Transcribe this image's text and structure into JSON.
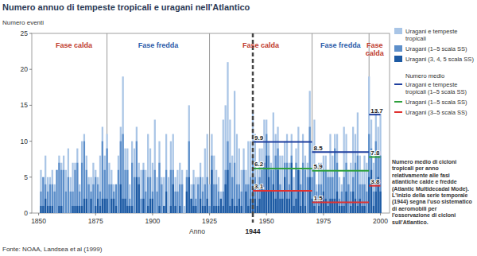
{
  "chart_data": {
    "type": "bar",
    "title": "Numero annuo di tempeste tropicali e uragani nell'Atlantico",
    "y_label": "Numero eventi",
    "x_label": "Anno",
    "source": "Fonte: NOAA, Landsea et al (1999)",
    "stacked": false,
    "grid": false,
    "legend": "right",
    "xlim": [
      1847,
      2004
    ],
    "xticks": [
      1850,
      1875,
      1900,
      1925,
      1950,
      1975,
      2000
    ],
    "ylim": [
      0,
      25
    ],
    "yticks": [
      0,
      5,
      10,
      15,
      20,
      25
    ],
    "series_start": 1944,
    "x": [
      1851,
      1852,
      1853,
      1854,
      1855,
      1856,
      1857,
      1858,
      1859,
      1860,
      1861,
      1862,
      1863,
      1864,
      1865,
      1866,
      1867,
      1868,
      1869,
      1870,
      1871,
      1872,
      1873,
      1874,
      1875,
      1876,
      1877,
      1878,
      1879,
      1880,
      1881,
      1882,
      1883,
      1884,
      1885,
      1886,
      1887,
      1888,
      1889,
      1890,
      1891,
      1892,
      1893,
      1894,
      1895,
      1896,
      1897,
      1898,
      1899,
      1900,
      1901,
      1902,
      1903,
      1904,
      1905,
      1906,
      1907,
      1908,
      1909,
      1910,
      1911,
      1912,
      1913,
      1914,
      1915,
      1916,
      1917,
      1918,
      1919,
      1920,
      1921,
      1922,
      1923,
      1924,
      1925,
      1926,
      1927,
      1928,
      1929,
      1930,
      1931,
      1932,
      1933,
      1934,
      1935,
      1936,
      1937,
      1938,
      1939,
      1940,
      1941,
      1942,
      1943,
      1944,
      1945,
      1946,
      1947,
      1948,
      1949,
      1950,
      1951,
      1952,
      1953,
      1954,
      1955,
      1956,
      1957,
      1958,
      1959,
      1960,
      1961,
      1962,
      1963,
      1964,
      1965,
      1966,
      1967,
      1968,
      1969,
      1970,
      1971,
      1972,
      1973,
      1974,
      1975,
      1976,
      1977,
      1978,
      1979,
      1980,
      1981,
      1982,
      1983,
      1984,
      1985,
      1986,
      1987,
      1988,
      1989,
      1990,
      1991,
      1992,
      1993,
      1994,
      1995,
      1996,
      1997,
      1998,
      1999,
      2000
    ],
    "series": [
      {
        "name": "Uragani e tempeste tropicali",
        "color": "#a9c5e6",
        "values": [
          6,
          5,
          8,
          5,
          5,
          6,
          4,
          6,
          8,
          7,
          8,
          6,
          9,
          5,
          7,
          7,
          9,
          4,
          10,
          11,
          8,
          5,
          5,
          7,
          6,
          5,
          8,
          12,
          8,
          11,
          7,
          6,
          4,
          4,
          8,
          12,
          19,
          9,
          9,
          4,
          10,
          9,
          12,
          7,
          6,
          7,
          6,
          11,
          9,
          7,
          13,
          5,
          10,
          5,
          5,
          11,
          5,
          10,
          11,
          5,
          6,
          7,
          6,
          1,
          6,
          15,
          4,
          6,
          5,
          5,
          7,
          5,
          9,
          11,
          4,
          11,
          8,
          6,
          5,
          3,
          13,
          15,
          21,
          13,
          8,
          17,
          11,
          9,
          6,
          9,
          6,
          10,
          10,
          14,
          11,
          6,
          9,
          9,
          13,
          13,
          10,
          7,
          14,
          11,
          12,
          8,
          8,
          10,
          11,
          7,
          11,
          5,
          9,
          12,
          6,
          11,
          8,
          7,
          17,
          10,
          13,
          4,
          7,
          7,
          8,
          8,
          6,
          11,
          8,
          11,
          11,
          5,
          4,
          12,
          11,
          6,
          7,
          12,
          11,
          14,
          8,
          6,
          8,
          7,
          19,
          13,
          7,
          14,
          12,
          14
        ]
      },
      {
        "name": "Uragani (1–5 scala SS)",
        "color": "#5d8fca",
        "values": [
          3,
          5,
          4,
          3,
          4,
          4,
          3,
          6,
          7,
          6,
          6,
          3,
          5,
          3,
          3,
          6,
          7,
          3,
          7,
          10,
          6,
          4,
          3,
          4,
          5,
          4,
          3,
          10,
          6,
          9,
          4,
          4,
          3,
          4,
          6,
          10,
          11,
          6,
          6,
          2,
          7,
          5,
          10,
          5,
          2,
          6,
          3,
          5,
          5,
          3,
          6,
          3,
          7,
          4,
          1,
          6,
          0,
          6,
          6,
          3,
          3,
          4,
          4,
          0,
          5,
          10,
          2,
          4,
          2,
          4,
          5,
          3,
          4,
          5,
          1,
          8,
          4,
          4,
          3,
          2,
          3,
          6,
          10,
          7,
          5,
          7,
          4,
          4,
          3,
          6,
          4,
          4,
          5,
          8,
          5,
          3,
          5,
          6,
          7,
          11,
          8,
          6,
          6,
          8,
          9,
          4,
          3,
          7,
          7,
          4,
          8,
          3,
          7,
          6,
          4,
          7,
          6,
          5,
          12,
          5,
          6,
          3,
          4,
          4,
          6,
          6,
          5,
          5,
          5,
          9,
          7,
          2,
          3,
          5,
          7,
          4,
          3,
          5,
          7,
          8,
          4,
          4,
          4,
          3,
          11,
          9,
          3,
          10,
          8,
          8
        ]
      },
      {
        "name": "Uragani (3, 4, 5 scala SS)",
        "color": "#1d5aa3",
        "values": [
          1,
          1,
          2,
          1,
          1,
          1,
          0,
          0,
          1,
          1,
          0,
          0,
          0,
          0,
          1,
          1,
          1,
          1,
          1,
          2,
          2,
          0,
          2,
          0,
          1,
          2,
          1,
          2,
          2,
          2,
          0,
          2,
          2,
          1,
          0,
          4,
          2,
          2,
          1,
          1,
          1,
          0,
          5,
          4,
          0,
          2,
          0,
          1,
          2,
          2,
          0,
          0,
          1,
          0,
          1,
          3,
          0,
          1,
          4,
          1,
          0,
          1,
          0,
          0,
          3,
          5,
          2,
          1,
          1,
          0,
          2,
          1,
          1,
          2,
          0,
          6,
          1,
          1,
          1,
          2,
          1,
          4,
          6,
          1,
          2,
          1,
          1,
          2,
          1,
          0,
          3,
          1,
          2,
          3,
          2,
          1,
          2,
          4,
          3,
          8,
          5,
          3,
          4,
          2,
          6,
          2,
          2,
          5,
          2,
          2,
          7,
          1,
          2,
          6,
          1,
          3,
          1,
          0,
          5,
          2,
          1,
          0,
          1,
          2,
          3,
          2,
          1,
          2,
          2,
          2,
          3,
          1,
          1,
          1,
          3,
          0,
          1,
          3,
          2,
          1,
          2,
          1,
          1,
          0,
          5,
          6,
          1,
          3,
          5,
          3
        ]
      }
    ],
    "means": {
      "title": "Numero medio",
      "periods": [
        [
          1944,
          1970
        ],
        [
          1970,
          1995
        ],
        [
          1995,
          2000
        ]
      ],
      "series": [
        {
          "name": "Uragani e tempeste tropicali (1–5 scala SS)",
          "color": "#1f3f9e",
          "values": [
            9.9,
            8.5,
            13.7
          ]
        },
        {
          "name": "Uragani (1–5 scala SS)",
          "color": "#2ea03c",
          "values": [
            6.2,
            5.9,
            7.8
          ]
        },
        {
          "name": "Uragani (3–5 scala SS)",
          "color": "#e0312f",
          "values": [
            3.1,
            1.5,
            3.8
          ]
        }
      ]
    },
    "phases": [
      {
        "label": "Fase calda",
        "start": 1851,
        "end": 1880,
        "color": "#c0392b"
      },
      {
        "label": "Fase fredda",
        "start": 1880,
        "end": 1925,
        "color": "#2a5aa8"
      },
      {
        "label": "Fase calda",
        "start": 1925,
        "end": 1970,
        "color": "#c0392b"
      },
      {
        "label": "Fase fredda",
        "start": 1970,
        "end": 1995,
        "color": "#2a5aa8"
      },
      {
        "label": "Fase calda",
        "start": 1995,
        "end": 2000,
        "color": "#c0392b"
      }
    ],
    "note": "Numero medio di cicloni tropicali per anno relativamente alle fasi atlantiche calde e fredde (Atlantic Multidecadal Mode). L'inizio della serie temporale (1944) segna l'uso sistematico di aeromobili per l'osservazione di cicloni sull'Atlantico."
  }
}
